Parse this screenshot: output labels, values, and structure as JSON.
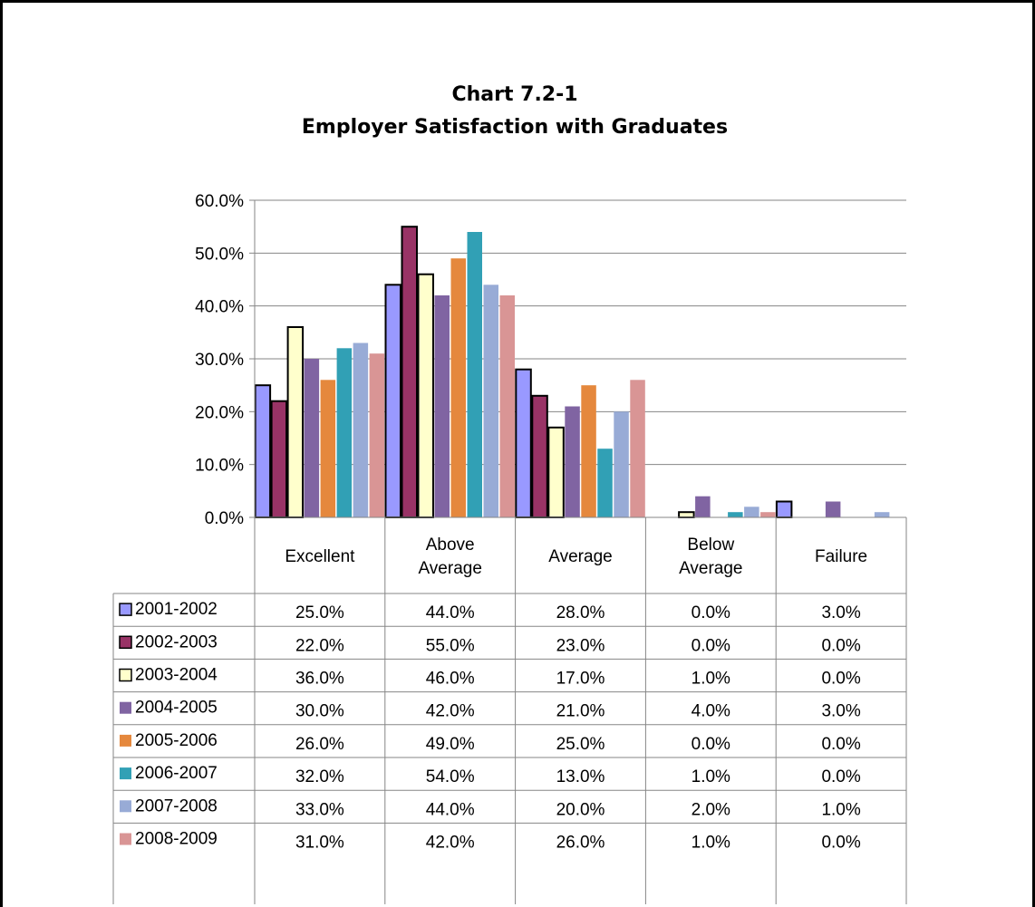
{
  "chart_data": {
    "type": "bar",
    "title": "Chart 7.2-1",
    "subtitle": "Employer Satisfaction with Graduates",
    "categories": [
      "Excellent",
      "Above Average",
      "Average",
      "Below Average",
      "Failure"
    ],
    "category_lines": [
      [
        "Excellent"
      ],
      [
        "Above",
        "Average"
      ],
      [
        "Average"
      ],
      [
        "Below",
        "Average"
      ],
      [
        "Failure"
      ]
    ],
    "ylim": [
      0,
      60
    ],
    "yticks": [
      0,
      10,
      20,
      30,
      40,
      50,
      60
    ],
    "ytick_labels": [
      "0.0%",
      "10.0%",
      "20.0%",
      "30.0%",
      "40.0%",
      "50.0%",
      "60.0%"
    ],
    "grid": true,
    "legend": "data-table-left",
    "series": [
      {
        "name": "2001-2002",
        "color": "#9999ff",
        "outlined": true,
        "values": [
          25,
          44,
          28,
          0,
          3
        ],
        "labels": [
          "25.0%",
          "44.0%",
          "28.0%",
          "0.0%",
          "3.0%"
        ]
      },
      {
        "name": "2002-2003",
        "color": "#993366",
        "outlined": true,
        "values": [
          22,
          55,
          23,
          0,
          0
        ],
        "labels": [
          "22.0%",
          "55.0%",
          "23.0%",
          "0.0%",
          "0.0%"
        ]
      },
      {
        "name": "2003-2004",
        "color": "#ffffcc",
        "outlined": true,
        "values": [
          36,
          46,
          17,
          1,
          0
        ],
        "labels": [
          "36.0%",
          "46.0%",
          "17.0%",
          "1.0%",
          "0.0%"
        ]
      },
      {
        "name": "2004-2005",
        "color": "#8064a2",
        "outlined": false,
        "values": [
          30,
          42,
          21,
          4,
          3
        ],
        "labels": [
          "30.0%",
          "42.0%",
          "21.0%",
          "4.0%",
          "3.0%"
        ]
      },
      {
        "name": "2005-2006",
        "color": "#e5883d",
        "outlined": false,
        "values": [
          26,
          49,
          25,
          0,
          0
        ],
        "labels": [
          "26.0%",
          "49.0%",
          "25.0%",
          "0.0%",
          "0.0%"
        ]
      },
      {
        "name": "2006-2007",
        "color": "#31a0b5",
        "outlined": false,
        "values": [
          32,
          54,
          13,
          1,
          0
        ],
        "labels": [
          "32.0%",
          "54.0%",
          "13.0%",
          "1.0%",
          "0.0%"
        ]
      },
      {
        "name": "2007-2008",
        "color": "#98abd6",
        "outlined": false,
        "values": [
          33,
          44,
          20,
          2,
          1
        ],
        "labels": [
          "33.0%",
          "44.0%",
          "20.0%",
          "2.0%",
          "1.0%"
        ]
      },
      {
        "name": "2008-2009",
        "color": "#d99595",
        "outlined": false,
        "values": [
          31,
          42,
          26,
          1,
          0
        ],
        "labels": [
          "31.0%",
          "42.0%",
          "26.0%",
          "1.0%",
          "0.0%"
        ]
      }
    ]
  }
}
